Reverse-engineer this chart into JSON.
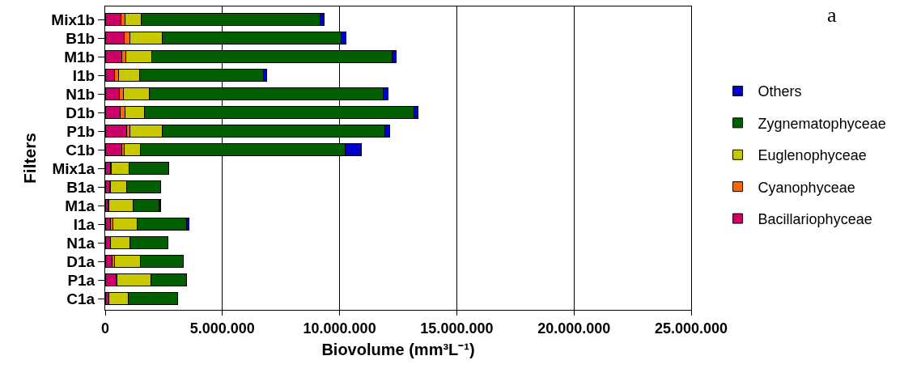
{
  "chart_data": {
    "type": "bar",
    "orientation": "horizontal",
    "stacked": true,
    "xlabel": "Biovolume (mm³L⁻¹)",
    "ylabel": "Filters",
    "annotations": [
      "a"
    ],
    "categories": [
      "Mix1b",
      "B1b",
      "M1b",
      "I1b",
      "N1b",
      "D1b",
      "P1b",
      "C1b",
      "Mix1a",
      "B1a",
      "M1a",
      "I1a",
      "N1a",
      "D1a",
      "P1a",
      "C1a"
    ],
    "series": [
      {
        "name": "Bacillariophyceae",
        "color": "#cc0066",
        "values": [
          670000,
          810000,
          710000,
          390000,
          600000,
          650000,
          900000,
          710000,
          220000,
          180000,
          120000,
          230000,
          210000,
          290000,
          480000,
          140000
        ]
      },
      {
        "name": "Cyanophyceae",
        "color": "#ff6600",
        "values": [
          170000,
          260000,
          180000,
          180000,
          180000,
          190000,
          160000,
          90000,
          30000,
          30000,
          40000,
          90000,
          30000,
          100000,
          20000,
          20000
        ]
      },
      {
        "name": "Euglenophyceae",
        "color": "#c8c800",
        "values": [
          690000,
          1380000,
          1090000,
          890000,
          1090000,
          820000,
          1380000,
          700000,
          760000,
          710000,
          1040000,
          1040000,
          830000,
          1110000,
          1450000,
          820000
        ]
      },
      {
        "name": "Zygnematophyceae",
        "color": "#006000",
        "values": [
          7640000,
          7630000,
          10250000,
          5300000,
          9990000,
          11530000,
          9490000,
          8730000,
          1710000,
          1460000,
          1090000,
          2120000,
          1610000,
          1820000,
          1520000,
          2110000
        ]
      },
      {
        "name": "Others",
        "color": "#0000cc",
        "values": [
          160000,
          180000,
          190000,
          130000,
          200000,
          140000,
          190000,
          700000,
          null,
          null,
          70000,
          110000,
          null,
          null,
          null,
          null
        ]
      }
    ],
    "xlim": [
      0,
      25000000
    ],
    "xticks": [
      0,
      {
        "value": 5000000,
        "label": "5.000.000"
      },
      {
        "value": 10000000,
        "label": "10.000.000"
      },
      {
        "value": 15000000,
        "label": "15.000.000"
      },
      {
        "value": 20000000,
        "label": "20.000.000"
      },
      {
        "value": 25000000,
        "label": "25.000.000"
      }
    ],
    "grid": "x",
    "legend": "right"
  }
}
